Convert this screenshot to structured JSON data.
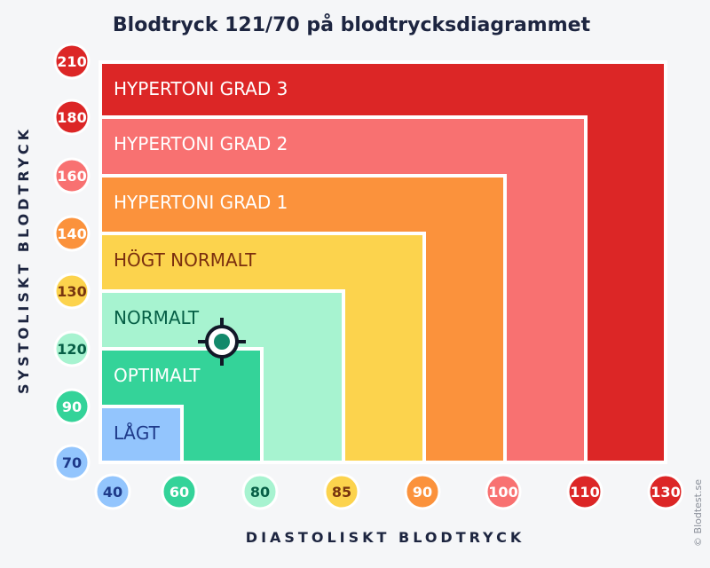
{
  "title": "Blodtryck 121/70 på blodtrycksdiagrammet",
  "credit": "© Blodtest.se",
  "colors": {
    "background": "#f5f6f8",
    "title_text": "#1d2540",
    "marker": "#12896a"
  },
  "chart_data": {
    "type": "area",
    "title": "Blodtryck 121/70 på blodtrycksdiagrammet",
    "xlabel": "DIASTOLISKT BLODTRYCK",
    "ylabel": "SYSTOLISKT BLODTRYCK",
    "x_ticks": [
      "40",
      "60",
      "80",
      "85",
      "90",
      "100",
      "110",
      "130"
    ],
    "y_ticks": [
      "70",
      "90",
      "120",
      "130",
      "140",
      "160",
      "180",
      "210"
    ],
    "tick_colors": [
      "#93c5fd",
      "#34d399",
      "#a7f3d0",
      "#fcd34d",
      "#fb923c",
      "#f87171",
      "#dc2626",
      "#dc2626"
    ],
    "tick_text_colors": [
      "#1e3a8a",
      "#ffffff",
      "#065f46",
      "#78350f",
      "#ffffff",
      "#ffffff",
      "#ffffff",
      "#ffffff"
    ],
    "zones": [
      {
        "name": "HYPERTONI GRAD 3",
        "max_index": 7,
        "color": "#dc2626",
        "text_color": "#ffffff"
      },
      {
        "name": "HYPERTONI GRAD 2",
        "max_index": 6,
        "color": "#f87171",
        "text_color": "#ffffff"
      },
      {
        "name": "HYPERTONI GRAD 1",
        "max_index": 5,
        "color": "#fb923c",
        "text_color": "#ffffff"
      },
      {
        "name": "HÖGT NORMALT",
        "max_index": 4,
        "color": "#fcd34d",
        "text_color": "#7a2e0e"
      },
      {
        "name": "NORMALT",
        "max_index": 3,
        "color": "#a7f3d0",
        "text_color": "#065f46"
      },
      {
        "name": "OPTIMALT",
        "max_index": 2,
        "color": "#34d399",
        "text_color": "#ffffff"
      },
      {
        "name": "LÅGT",
        "max_index": 1,
        "color": "#93c5fd",
        "text_color": "#1e3a8a"
      }
    ],
    "marker": {
      "systolic": 121,
      "diastolic": 70
    }
  }
}
